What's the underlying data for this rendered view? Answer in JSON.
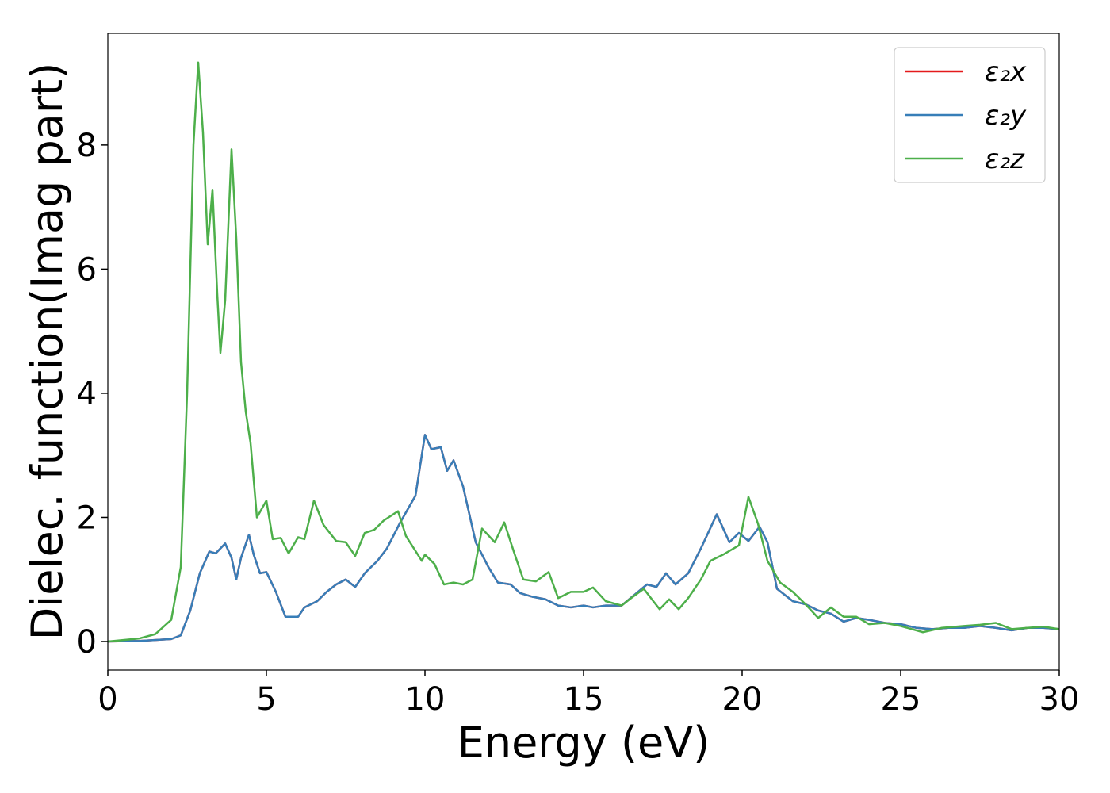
{
  "chart_data": {
    "type": "line",
    "xlabel": "Energy (eV)",
    "ylabel": "Dielec. function(Imag part)",
    "xlim": [
      0,
      30
    ],
    "ylim": [
      -0.46,
      9.8
    ],
    "xticks": [
      0,
      5,
      10,
      15,
      20,
      25,
      30
    ],
    "yticks": [
      0,
      2,
      4,
      6,
      8
    ],
    "legend": "upper right",
    "series": [
      {
        "name": "ε₂x",
        "color": "#e41a1c",
        "x": [
          0,
          1,
          2,
          2.3,
          2.6,
          2.9,
          3.2,
          3.4,
          3.7,
          3.9,
          4.05,
          4.2,
          4.45,
          4.6,
          4.8,
          5.0,
          5.3,
          5.6,
          6.0,
          6.2,
          6.6,
          6.9,
          7.2,
          7.5,
          7.8,
          8.1,
          8.5,
          8.8,
          9.2,
          9.7,
          10.0,
          10.2,
          10.5,
          10.7,
          10.9,
          11.2,
          11.6,
          12.0,
          12.3,
          12.7,
          13.0,
          13.4,
          13.8,
          14.2,
          14.6,
          15.0,
          15.3,
          15.7,
          16.2,
          16.6,
          17.0,
          17.3,
          17.6,
          17.9,
          18.3,
          18.7,
          19.2,
          19.6,
          19.9,
          20.2,
          20.55,
          20.8,
          21.1,
          21.6,
          22.0,
          22.4,
          22.8,
          23.2,
          23.6,
          24.0,
          24.5,
          25.0,
          25.5,
          26.0,
          26.5,
          27.0,
          27.5,
          28.0,
          28.5,
          29.0,
          29.5,
          30
        ],
        "values": [
          0,
          0.01,
          0.04,
          0.1,
          0.5,
          1.1,
          1.45,
          1.42,
          1.58,
          1.35,
          1.0,
          1.35,
          1.72,
          1.4,
          1.1,
          1.12,
          0.8,
          0.4,
          0.4,
          0.55,
          0.65,
          0.8,
          0.92,
          1.0,
          0.88,
          1.1,
          1.3,
          1.5,
          1.9,
          2.35,
          3.33,
          3.1,
          3.13,
          2.75,
          2.92,
          2.5,
          1.6,
          1.2,
          0.95,
          0.92,
          0.78,
          0.72,
          0.68,
          0.58,
          0.55,
          0.58,
          0.55,
          0.58,
          0.58,
          0.75,
          0.92,
          0.88,
          1.1,
          0.92,
          1.1,
          1.5,
          2.05,
          1.6,
          1.75,
          1.62,
          1.85,
          1.6,
          0.85,
          0.65,
          0.6,
          0.5,
          0.45,
          0.32,
          0.38,
          0.35,
          0.3,
          0.28,
          0.22,
          0.2,
          0.22,
          0.22,
          0.25,
          0.22,
          0.18,
          0.22,
          0.22,
          0.2
        ]
      },
      {
        "name": "ε₂y",
        "color": "#377eb8",
        "x": [
          0,
          1,
          2,
          2.3,
          2.6,
          2.9,
          3.2,
          3.4,
          3.7,
          3.9,
          4.05,
          4.2,
          4.45,
          4.6,
          4.8,
          5.0,
          5.3,
          5.6,
          6.0,
          6.2,
          6.6,
          6.9,
          7.2,
          7.5,
          7.8,
          8.1,
          8.5,
          8.8,
          9.2,
          9.7,
          10.0,
          10.2,
          10.5,
          10.7,
          10.9,
          11.2,
          11.6,
          12.0,
          12.3,
          12.7,
          13.0,
          13.4,
          13.8,
          14.2,
          14.6,
          15.0,
          15.3,
          15.7,
          16.2,
          16.6,
          17.0,
          17.3,
          17.6,
          17.9,
          18.3,
          18.7,
          19.2,
          19.6,
          19.9,
          20.2,
          20.55,
          20.8,
          21.1,
          21.6,
          22.0,
          22.4,
          22.8,
          23.2,
          23.6,
          24.0,
          24.5,
          25.0,
          25.5,
          26.0,
          26.5,
          27.0,
          27.5,
          28.0,
          28.5,
          29.0,
          29.5,
          30
        ],
        "values": [
          0,
          0.01,
          0.04,
          0.1,
          0.5,
          1.1,
          1.45,
          1.42,
          1.58,
          1.35,
          1.0,
          1.35,
          1.72,
          1.4,
          1.1,
          1.12,
          0.8,
          0.4,
          0.4,
          0.55,
          0.65,
          0.8,
          0.92,
          1.0,
          0.88,
          1.1,
          1.3,
          1.5,
          1.9,
          2.35,
          3.33,
          3.1,
          3.13,
          2.75,
          2.92,
          2.5,
          1.6,
          1.2,
          0.95,
          0.92,
          0.78,
          0.72,
          0.68,
          0.58,
          0.55,
          0.58,
          0.55,
          0.58,
          0.58,
          0.75,
          0.92,
          0.88,
          1.1,
          0.92,
          1.1,
          1.5,
          2.05,
          1.6,
          1.75,
          1.62,
          1.85,
          1.6,
          0.85,
          0.65,
          0.6,
          0.5,
          0.45,
          0.32,
          0.38,
          0.35,
          0.3,
          0.28,
          0.22,
          0.2,
          0.22,
          0.22,
          0.25,
          0.22,
          0.18,
          0.22,
          0.22,
          0.2
        ]
      },
      {
        "name": "ε₂z",
        "color": "#4daf4a",
        "x": [
          0,
          1,
          1.5,
          2,
          2.3,
          2.5,
          2.7,
          2.85,
          3.0,
          3.15,
          3.3,
          3.45,
          3.55,
          3.7,
          3.9,
          4.05,
          4.2,
          4.35,
          4.5,
          4.7,
          5.0,
          5.2,
          5.45,
          5.7,
          6.0,
          6.2,
          6.5,
          6.8,
          7.2,
          7.5,
          7.8,
          8.1,
          8.4,
          8.7,
          9.0,
          9.15,
          9.4,
          9.9,
          10.0,
          10.3,
          10.6,
          10.9,
          11.2,
          11.5,
          11.8,
          12.2,
          12.5,
          12.8,
          13.1,
          13.5,
          13.9,
          14.2,
          14.6,
          15.0,
          15.3,
          15.7,
          16.2,
          16.5,
          16.9,
          17.2,
          17.4,
          17.7,
          18.0,
          18.3,
          18.7,
          19.0,
          19.4,
          19.9,
          20.2,
          20.5,
          20.8,
          21.2,
          21.6,
          22.0,
          22.4,
          22.8,
          23.2,
          23.6,
          24.0,
          24.5,
          25.0,
          25.7,
          26.3,
          27.0,
          27.5,
          28.0,
          28.5,
          29.0,
          29.5,
          30
        ],
        "values": [
          0,
          0.05,
          0.12,
          0.35,
          1.2,
          4,
          8,
          9.33,
          8.2,
          6.4,
          7.28,
          5.6,
          4.65,
          5.5,
          7.93,
          6.5,
          4.5,
          3.7,
          3.2,
          2.0,
          2.27,
          1.65,
          1.67,
          1.42,
          1.68,
          1.65,
          2.27,
          1.88,
          1.62,
          1.6,
          1.38,
          1.75,
          1.8,
          1.95,
          2.05,
          2.1,
          1.7,
          1.3,
          1.4,
          1.25,
          0.92,
          0.95,
          0.92,
          1.0,
          1.82,
          1.6,
          1.92,
          1.45,
          1.0,
          0.97,
          1.12,
          0.7,
          0.8,
          0.8,
          0.87,
          0.65,
          0.58,
          0.7,
          0.85,
          0.65,
          0.52,
          0.68,
          0.52,
          0.7,
          1.0,
          1.3,
          1.4,
          1.55,
          2.33,
          1.9,
          1.3,
          0.95,
          0.8,
          0.6,
          0.38,
          0.55,
          0.4,
          0.4,
          0.28,
          0.3,
          0.25,
          0.15,
          0.22,
          0.25,
          0.27,
          0.3,
          0.2,
          0.22,
          0.24,
          0.2
        ]
      }
    ]
  }
}
